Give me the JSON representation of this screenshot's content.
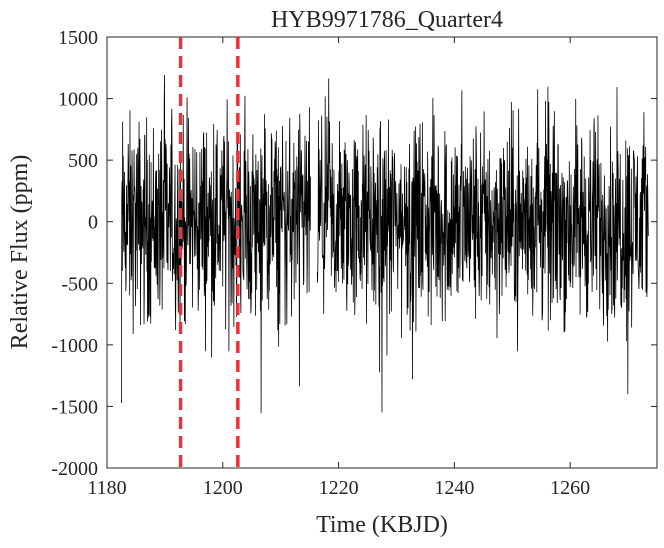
{
  "chart_data": {
    "type": "line",
    "title": "HYB9971786_Quarter4",
    "xlabel": "Time (KBJD)",
    "ylabel": "Relative Flux (ppm)",
    "xlim": [
      1180,
      1275
    ],
    "ylim": [
      -2000,
      1500
    ],
    "xticks": [
      "1180",
      "1200",
      "1220",
      "1240",
      "1260"
    ],
    "yticks": [
      "1500",
      "1000",
      "500",
      "0",
      "-500",
      "-1000",
      "-1500",
      "-2000"
    ],
    "grid": false,
    "legend": "none",
    "series": [
      {
        "color": "#000000",
        "time_range": [
          1182.5,
          1273.5
        ],
        "gaps": [
          [
            1215.2,
            1216.3
          ]
        ],
        "typical_range": [
          -900,
          900
        ],
        "extreme_min": -1600,
        "extreme_max": 1200
      }
    ],
    "vertical_lines": [
      {
        "x": 1192.7,
        "color": "#e8333a",
        "style": "dashed"
      },
      {
        "x": 1202.6,
        "color": "#e8333a",
        "style": "dashed"
      }
    ]
  }
}
